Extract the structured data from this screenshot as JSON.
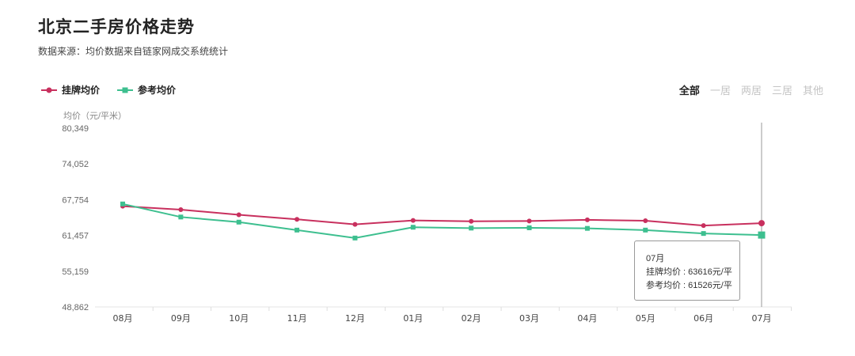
{
  "header": {
    "title": "北京二手房价格走势",
    "subtitle": "数据来源：均价数据来自链家网成交系统统计"
  },
  "legend": [
    {
      "label": "挂牌均价",
      "color": "#c8305e"
    },
    {
      "label": "参考均价",
      "color": "#3dbf8f"
    }
  ],
  "filters": [
    {
      "label": "全部",
      "active": true
    },
    {
      "label": "一居",
      "active": false
    },
    {
      "label": "两居",
      "active": false
    },
    {
      "label": "三居",
      "active": false
    },
    {
      "label": "其他",
      "active": false
    }
  ],
  "tooltip": {
    "month": "07月",
    "line1": "挂牌均价 : 63616元/平",
    "line2": "参考均价 : 61526元/平"
  },
  "chart_data": {
    "type": "line",
    "title": "北京二手房价格走势",
    "ylabel": "均价（元/平米）",
    "xlabel": "",
    "categories": [
      "08月",
      "09月",
      "10月",
      "11月",
      "12月",
      "01月",
      "02月",
      "03月",
      "04月",
      "05月",
      "06月",
      "07月"
    ],
    "yticks": [
      "80,349",
      "74,052",
      "67,754",
      "61,457",
      "55,159",
      "48,862"
    ],
    "ylim": [
      48862,
      80349
    ],
    "series": [
      {
        "name": "挂牌均价",
        "color": "#c8305e",
        "marker": "circle",
        "values": [
          66600,
          66000,
          65100,
          64300,
          63400,
          64100,
          63950,
          64000,
          64200,
          64050,
          63200,
          63616
        ]
      },
      {
        "name": "参考均价",
        "color": "#3dbf8f",
        "marker": "square",
        "values": [
          67000,
          64700,
          63800,
          62400,
          61000,
          62900,
          62750,
          62800,
          62700,
          62400,
          61800,
          61526
        ]
      }
    ],
    "highlight_index": 11,
    "legend_position": "top-left",
    "grid": false
  }
}
